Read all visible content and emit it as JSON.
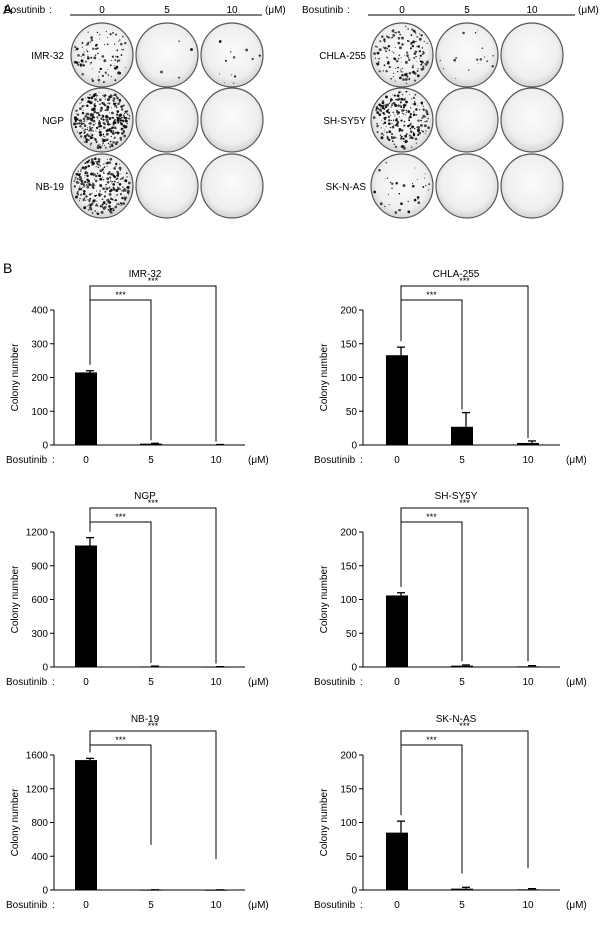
{
  "panel_a": {
    "letter": "A",
    "axis_label": "Bosutinib",
    "separator": ":",
    "unit": "(μM)",
    "groups": [
      {
        "doses": [
          "0",
          "5",
          "10"
        ],
        "rows": [
          {
            "label": "IMR-32",
            "density": [
              0.25,
              0.01,
              0.03
            ]
          },
          {
            "label": "NGP",
            "density": [
              0.85,
              0.0,
              0.0
            ]
          },
          {
            "label": "NB-19",
            "density": [
              0.7,
              0.0,
              0.0
            ]
          }
        ]
      },
      {
        "doses": [
          "0",
          "5",
          "10"
        ],
        "rows": [
          {
            "label": "CHLA-255",
            "density": [
              0.35,
              0.04,
              0.0
            ]
          },
          {
            "label": "SH-SY5Y",
            "density": [
              0.55,
              0.0,
              0.0
            ]
          },
          {
            "label": "SK-N-AS",
            "density": [
              0.08,
              0.0,
              0.0
            ]
          }
        ]
      }
    ]
  },
  "panel_b": {
    "letter": "B",
    "x_title": "Bosutinib",
    "separator": ":",
    "unit": "(μM)",
    "y_title": "Colony number",
    "significance": "***"
  },
  "chart_data": [
    {
      "type": "bar",
      "title": "IMR-32",
      "categories": [
        "0",
        "5",
        "10"
      ],
      "values": [
        215,
        4,
        1
      ],
      "errors": [
        5,
        1,
        0.5
      ],
      "ylim": [
        0,
        400
      ],
      "yticks": [
        "0",
        "100",
        "200",
        "300",
        "400"
      ],
      "ylabel": "Colony number",
      "xlabel": "Bosutinib",
      "bracket_ends": [
        null,
        5,
        1
      ]
    },
    {
      "type": "bar",
      "title": "CHLA-255",
      "categories": [
        "0",
        "5",
        "10"
      ],
      "values": [
        133,
        27,
        3
      ],
      "errors": [
        12,
        21,
        3
      ],
      "ylim": [
        0,
        200
      ],
      "yticks": [
        "0",
        "50",
        "100",
        "150",
        "200"
      ],
      "ylabel": "Colony number",
      "xlabel": "Bosutinib",
      "bracket_ends": [
        null,
        48,
        6
      ]
    },
    {
      "type": "bar",
      "title": "NGP",
      "categories": [
        "0",
        "5",
        "10"
      ],
      "values": [
        1080,
        5,
        2
      ],
      "errors": [
        70,
        3,
        1
      ],
      "ylim": [
        0,
        1200
      ],
      "yticks": [
        "0",
        "300",
        "600",
        "900",
        "1200"
      ],
      "ylabel": "Colony number",
      "xlabel": "Bosutinib",
      "bracket_ends": [
        null,
        10,
        5
      ]
    },
    {
      "type": "bar",
      "title": "SH-SY5Y",
      "categories": [
        "0",
        "5",
        "10"
      ],
      "values": [
        106,
        2,
        1
      ],
      "errors": [
        4,
        1,
        1
      ],
      "ylim": [
        0,
        200
      ],
      "yticks": [
        "0",
        "50",
        "100",
        "150",
        "200"
      ],
      "ylabel": "Colony number",
      "xlabel": "Bosutinib",
      "bracket_ends": [
        null,
        4,
        4
      ]
    },
    {
      "type": "bar",
      "title": "NB-19",
      "categories": [
        "0",
        "5",
        "10"
      ],
      "values": [
        1540,
        2,
        1
      ],
      "errors": [
        20,
        1,
        1
      ],
      "ylim": [
        0,
        1600
      ],
      "yticks": [
        "0",
        "400",
        "800",
        "1200",
        "1600"
      ],
      "ylabel": "Colony number",
      "xlabel": "Bosutinib",
      "bracket_ends": [
        null,
        500,
        330
      ]
    },
    {
      "type": "bar",
      "title": "SK-N-AS",
      "categories": [
        "0",
        "5",
        "10"
      ],
      "values": [
        85,
        2,
        1
      ],
      "errors": [
        17,
        2,
        1
      ],
      "ylim": [
        0,
        200
      ],
      "yticks": [
        "0",
        "50",
        "100",
        "150",
        "200"
      ],
      "ylabel": "Colony number",
      "xlabel": "Bosutinib",
      "bracket_ends": [
        null,
        20,
        28
      ]
    }
  ]
}
